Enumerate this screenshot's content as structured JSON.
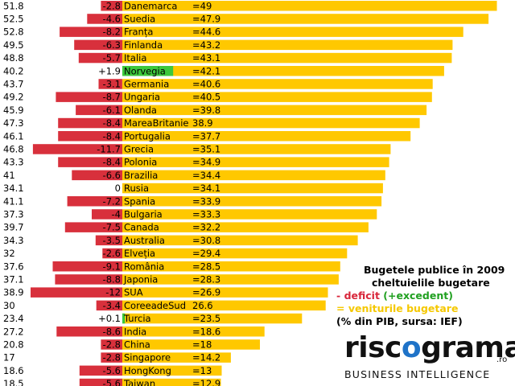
{
  "chart_data": {
    "type": "bar",
    "legend": {
      "title_line1": "Bugetele publice în 2009",
      "title_line2": "cheltuielile bugetare",
      "deficit_prefix": "-",
      "deficit_text": "deficit",
      "excedent_text": "(+excedent)",
      "revenue_prefix": "=",
      "revenue_text": "veniturile bugetare",
      "note": "(% din PIB, sursa: IEF)"
    },
    "series": [
      {
        "name": "cheltuielile bugetare",
        "values": [
          51.8,
          52.5,
          52.8,
          49.5,
          48.8,
          40.2,
          43.7,
          49.2,
          45.9,
          47.3,
          46.1,
          46.8,
          43.3,
          41,
          34.1,
          41.1,
          37.3,
          39.7,
          34.3,
          32,
          37.6,
          37.1,
          38.9,
          30,
          23.4,
          27.2,
          20.8,
          17,
          18.6,
          18.5
        ]
      },
      {
        "name": "deficit",
        "values": [
          -2.8,
          -4.6,
          -8.2,
          -6.3,
          -5.7,
          1.9,
          -3.1,
          -8.7,
          -6.1,
          -8.4,
          -8.4,
          -11.7,
          -8.4,
          -6.6,
          0,
          -7.2,
          -4,
          -7.5,
          -3.5,
          -2.6,
          -9.1,
          -8.8,
          -12,
          -3.4,
          0.1,
          -8.6,
          -2.8,
          -2.8,
          -5.6,
          -5.6
        ]
      },
      {
        "name": "veniturile bugetare",
        "values": [
          49,
          47.9,
          44.6,
          43.2,
          43.1,
          42.1,
          40.6,
          40.5,
          39.8,
          38.9,
          37.7,
          35.1,
          34.9,
          34.4,
          34.1,
          33.9,
          33.3,
          32.2,
          30.8,
          29.4,
          28.5,
          28.3,
          26.9,
          26.6,
          23.5,
          18.6,
          18,
          14.2,
          13,
          12.9
        ]
      }
    ],
    "rows": [
      {
        "country": "Danemarca",
        "spend": "51.8",
        "balance": "-2.8",
        "revenue": "=49",
        "rev": 49,
        "bal": -2.8
      },
      {
        "country": "Suedia",
        "spend": "52.5",
        "balance": "-4.6",
        "revenue": "=47.9",
        "rev": 47.9,
        "bal": -4.6
      },
      {
        "country": "Franța",
        "spend": "52.8",
        "balance": "-8.2",
        "revenue": "=44.6",
        "rev": 44.6,
        "bal": -8.2
      },
      {
        "country": "Finlanda",
        "spend": "49.5",
        "balance": "-6.3",
        "revenue": "=43.2",
        "rev": 43.2,
        "bal": -6.3
      },
      {
        "country": "Italia",
        "spend": "48.8",
        "balance": "-5.7",
        "revenue": "=43.1",
        "rev": 43.1,
        "bal": -5.7
      },
      {
        "country": "Norvegia",
        "spend": "40.2",
        "balance": "+1.9",
        "revenue": "=42.1",
        "rev": 42.1,
        "bal": 1.9
      },
      {
        "country": "Germania",
        "spend": "43.7",
        "balance": "-3.1",
        "revenue": "=40.6",
        "rev": 40.6,
        "bal": -3.1
      },
      {
        "country": "Ungaria",
        "spend": "49.2",
        "balance": "-8.7",
        "revenue": "=40.5",
        "rev": 40.5,
        "bal": -8.7
      },
      {
        "country": "Olanda",
        "spend": "45.9",
        "balance": "-6.1",
        "revenue": "=39.8",
        "rev": 39.8,
        "bal": -6.1
      },
      {
        "country": "MareaBritanie",
        "spend": "47.3",
        "balance": "-8.4",
        "revenue": "38.9",
        "rev": 38.9,
        "bal": -8.4
      },
      {
        "country": "Portugalia",
        "spend": "46.1",
        "balance": "-8.4",
        "revenue": "=37.7",
        "rev": 37.7,
        "bal": -8.4
      },
      {
        "country": "Grecia",
        "spend": "46.8",
        "balance": "-11.7",
        "revenue": "=35.1",
        "rev": 35.1,
        "bal": -11.7
      },
      {
        "country": "Polonia",
        "spend": "43.3",
        "balance": "-8.4",
        "revenue": "=34.9",
        "rev": 34.9,
        "bal": -8.4
      },
      {
        "country": "Brazilia",
        "spend": "41",
        "balance": "-6.6",
        "revenue": "=34.4",
        "rev": 34.4,
        "bal": -6.6
      },
      {
        "country": "Rusia",
        "spend": "34.1",
        "balance": "0",
        "revenue": "=34.1",
        "rev": 34.1,
        "bal": 0
      },
      {
        "country": "Spania",
        "spend": "41.1",
        "balance": "-7.2",
        "revenue": "=33.9",
        "rev": 33.9,
        "bal": -7.2
      },
      {
        "country": "Bulgaria",
        "spend": "37.3",
        "balance": "-4",
        "revenue": "=33.3",
        "rev": 33.3,
        "bal": -4
      },
      {
        "country": "Canada",
        "spend": "39.7",
        "balance": "-7.5",
        "revenue": "=32.2",
        "rev": 32.2,
        "bal": -7.5
      },
      {
        "country": "Australia",
        "spend": "34.3",
        "balance": "-3.5",
        "revenue": "=30.8",
        "rev": 30.8,
        "bal": -3.5
      },
      {
        "country": "Elveția",
        "spend": "32",
        "balance": "-2.6",
        "revenue": "=29.4",
        "rev": 29.4,
        "bal": -2.6
      },
      {
        "country": "România",
        "spend": "37.6",
        "balance": "-9.1",
        "revenue": "=28.5",
        "rev": 28.5,
        "bal": -9.1
      },
      {
        "country": "Japonia",
        "spend": "37.1",
        "balance": "-8.8",
        "revenue": "=28.3",
        "rev": 28.3,
        "bal": -8.8
      },
      {
        "country": "SUA",
        "spend": "38.9",
        "balance": "-12",
        "revenue": "=26.9",
        "rev": 26.9,
        "bal": -12
      },
      {
        "country": "CoreeadeSud",
        "spend": "30",
        "balance": "-3.4",
        "revenue": "26.6",
        "rev": 26.6,
        "bal": -3.4
      },
      {
        "country": "Turcia",
        "spend": "23.4",
        "balance": "+0.1",
        "revenue": "=23.5",
        "rev": 23.5,
        "bal": 0.1
      },
      {
        "country": "India",
        "spend": "27.2",
        "balance": "-8.6",
        "revenue": "=18.6",
        "rev": 18.6,
        "bal": -8.6
      },
      {
        "country": "China",
        "spend": "20.8",
        "balance": "-2.8",
        "revenue": "=18",
        "rev": 18,
        "bal": -2.8
      },
      {
        "country": "Singapore",
        "spend": "17",
        "balance": "-2.8",
        "revenue": "=14.2",
        "rev": 14.2,
        "bal": -2.8
      },
      {
        "country": "HongKong",
        "spend": "18.6",
        "balance": "-5.6",
        "revenue": "=13",
        "rev": 13,
        "bal": -5.6
      },
      {
        "country": "Taiwan",
        "spend": "18.5",
        "balance": "-5.6",
        "revenue": "=12.9",
        "rev": 12.9,
        "bal": -5.6
      }
    ],
    "colors": {
      "revenue": "#ffc800",
      "deficit": "#d8303c",
      "surplus": "#3cc83c"
    }
  },
  "logo": {
    "word_a": "risc",
    "word_o": "o",
    "word_b": "grama",
    "suffix": ".ro",
    "tagline": "BUSINESS INTELLIGENCE"
  }
}
